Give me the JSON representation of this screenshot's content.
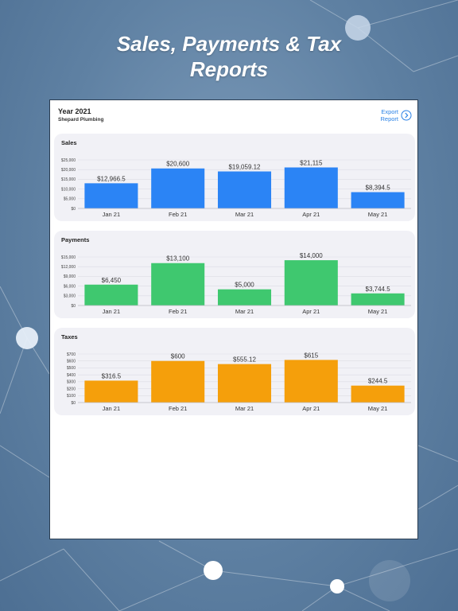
{
  "headline": {
    "line1": "Sales, Payments & Tax",
    "line2": "Reports"
  },
  "report": {
    "title": "Year 2021",
    "subtitle": "Shepard Plumbing",
    "export_line1": "Export",
    "export_line2": "Report",
    "export_icon": "chevron-right-circle-icon"
  },
  "colors": {
    "sales": "#2b84f5",
    "payments": "#3fc86f",
    "taxes": "#f59f0b",
    "accent": "#2b82e6"
  },
  "chart_data": [
    {
      "type": "bar",
      "title": "Sales",
      "categories": [
        "Jan 21",
        "Feb 21",
        "Mar 21",
        "Apr 21",
        "May 21"
      ],
      "values": [
        12966.5,
        20600,
        19059.12,
        21115,
        8394.5
      ],
      "value_labels": [
        "$12,966.5",
        "$20,600",
        "$19,059.12",
        "$21,115",
        "$8,394.5"
      ],
      "ylim": [
        0,
        25000
      ],
      "yticks": [
        0,
        5000,
        10000,
        15000,
        20000,
        25000
      ],
      "ytick_labels": [
        "$0",
        "$5,000",
        "$10,000",
        "$15,000",
        "$20,000",
        "$25,000"
      ],
      "grid": true,
      "color": "#2b84f5"
    },
    {
      "type": "bar",
      "title": "Payments",
      "categories": [
        "Jan 21",
        "Feb 21",
        "Mar 21",
        "Apr 21",
        "May 21"
      ],
      "values": [
        6450,
        13100,
        5000,
        14000,
        3744.5
      ],
      "value_labels": [
        "$6,450",
        "$13,100",
        "$5,000",
        "$14,000",
        "$3,744.5"
      ],
      "ylim": [
        0,
        15000
      ],
      "yticks": [
        0,
        3000,
        6000,
        9000,
        12000,
        15000
      ],
      "ytick_labels": [
        "$0",
        "$3,000",
        "$6,000",
        "$9,000",
        "$12,000",
        "$15,000"
      ],
      "grid": true,
      "color": "#3fc86f"
    },
    {
      "type": "bar",
      "title": "Taxes",
      "categories": [
        "Jan 21",
        "Feb 21",
        "Mar 21",
        "Apr 21",
        "May 21"
      ],
      "values": [
        316.5,
        600,
        555.12,
        615,
        244.5
      ],
      "value_labels": [
        "$316.5",
        "$600",
        "$555.12",
        "$615",
        "$244.5"
      ],
      "ylim": [
        0,
        700
      ],
      "yticks": [
        0,
        100,
        200,
        300,
        400,
        500,
        600,
        700
      ],
      "ytick_labels": [
        "$0",
        "$100",
        "$200",
        "$300",
        "$400",
        "$500",
        "$600",
        "$700"
      ],
      "grid": true,
      "color": "#f59f0b"
    }
  ]
}
